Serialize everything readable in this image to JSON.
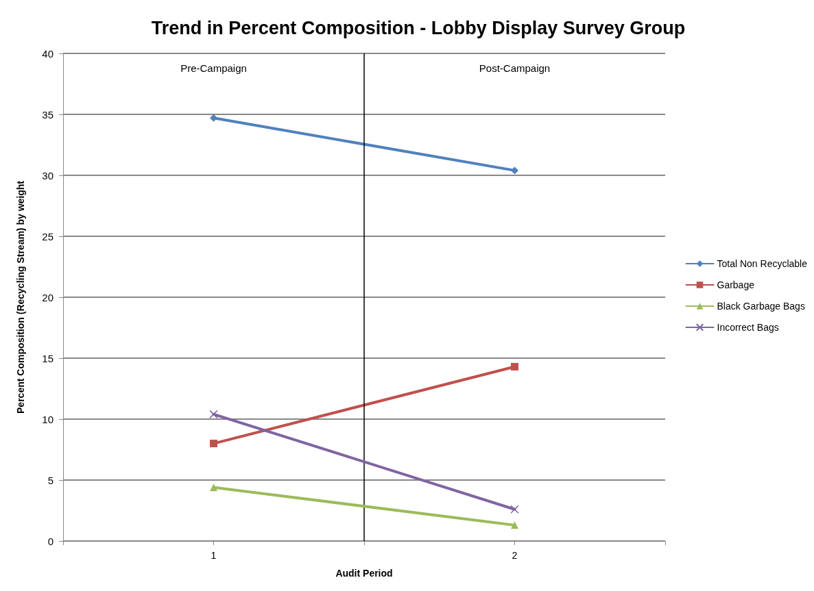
{
  "chart_data": {
    "type": "line",
    "title": "Trend in Percent Composition - Lobby Display Survey Group",
    "xlabel": "Audit Period",
    "ylabel": "Percent Composition (Recycling Stream) by weight",
    "x": [
      1,
      2
    ],
    "xlim": [
      0.5,
      2.5
    ],
    "xticks": [
      {
        "value": 0.5,
        "label": null
      },
      1,
      {
        "value": 1.5,
        "label": null
      },
      2,
      {
        "value": 2.5,
        "label": null
      }
    ],
    "ylim": [
      0,
      40
    ],
    "yticks": [
      0,
      5,
      10,
      15,
      20,
      25,
      30,
      35,
      40
    ],
    "grid": "y",
    "legend": "right",
    "series": [
      {
        "name": "Total Non Recyclable",
        "color": "#4f81bd",
        "marker": "diamond",
        "values": [
          34.7,
          30.4
        ]
      },
      {
        "name": "Garbage",
        "color": "#c0504d",
        "marker": "square",
        "values": [
          8.0,
          14.3
        ]
      },
      {
        "name": "Black Garbage Bags",
        "color": "#9bbb59",
        "marker": "triangle",
        "values": [
          4.4,
          1.3
        ]
      },
      {
        "name": "Incorrect Bags",
        "color": "#8064a2",
        "marker": "cross",
        "values": [
          10.4,
          2.6
        ]
      }
    ],
    "ref_lines": [
      {
        "axis": "x",
        "value": 1.5,
        "color": "#000000"
      }
    ],
    "annotations": [
      "Pre-Campaign",
      "Post-Campaign"
    ]
  }
}
